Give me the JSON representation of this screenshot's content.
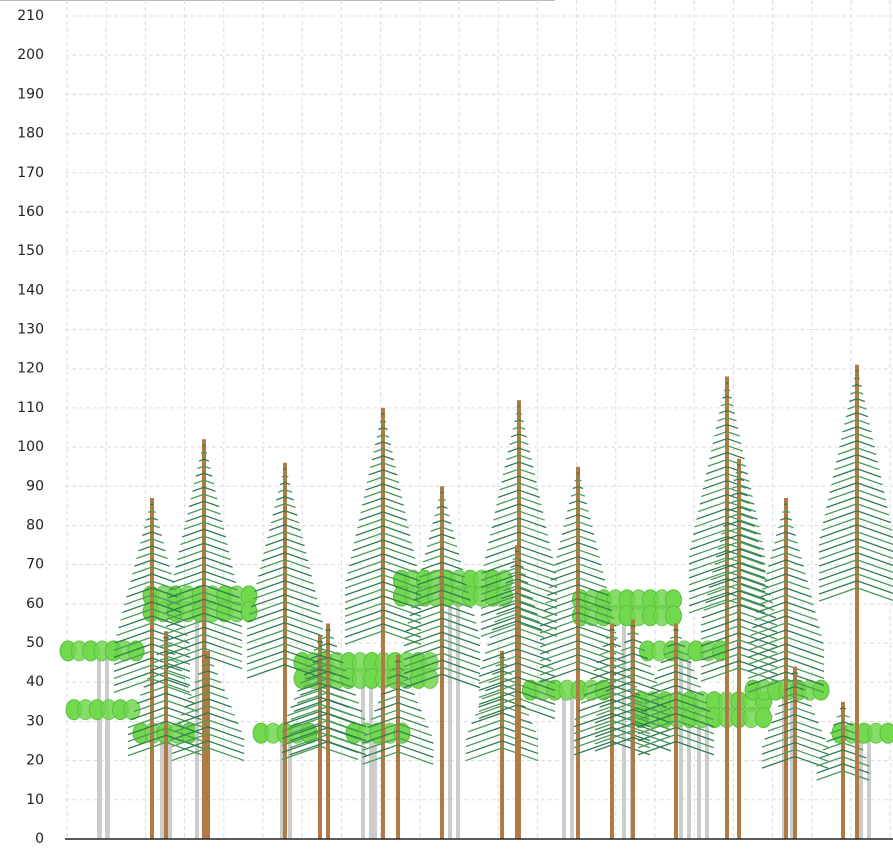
{
  "chart_data": {
    "type": "forest",
    "ylim": [
      0,
      210
    ],
    "yticks": [
      0,
      10,
      20,
      30,
      40,
      50,
      60,
      70,
      80,
      90,
      100,
      110,
      120,
      130,
      140,
      150,
      160,
      170,
      180,
      190,
      200,
      210
    ],
    "grid": true,
    "conifers": {
      "color": "#b07a45",
      "crown_color": "#2e7d4f",
      "values": [
        87,
        53,
        102,
        48,
        96,
        52,
        55,
        110,
        47,
        90,
        48,
        112,
        75,
        95,
        55,
        56,
        55,
        118,
        97,
        87,
        44,
        35,
        121
      ]
    },
    "broadleaf": {
      "color": "#cccccc",
      "crown_color": "#72d84e",
      "values": [
        48,
        33,
        27,
        60,
        27,
        43,
        27,
        64,
        38,
        59,
        48,
        33,
        38,
        27
      ]
    }
  }
}
